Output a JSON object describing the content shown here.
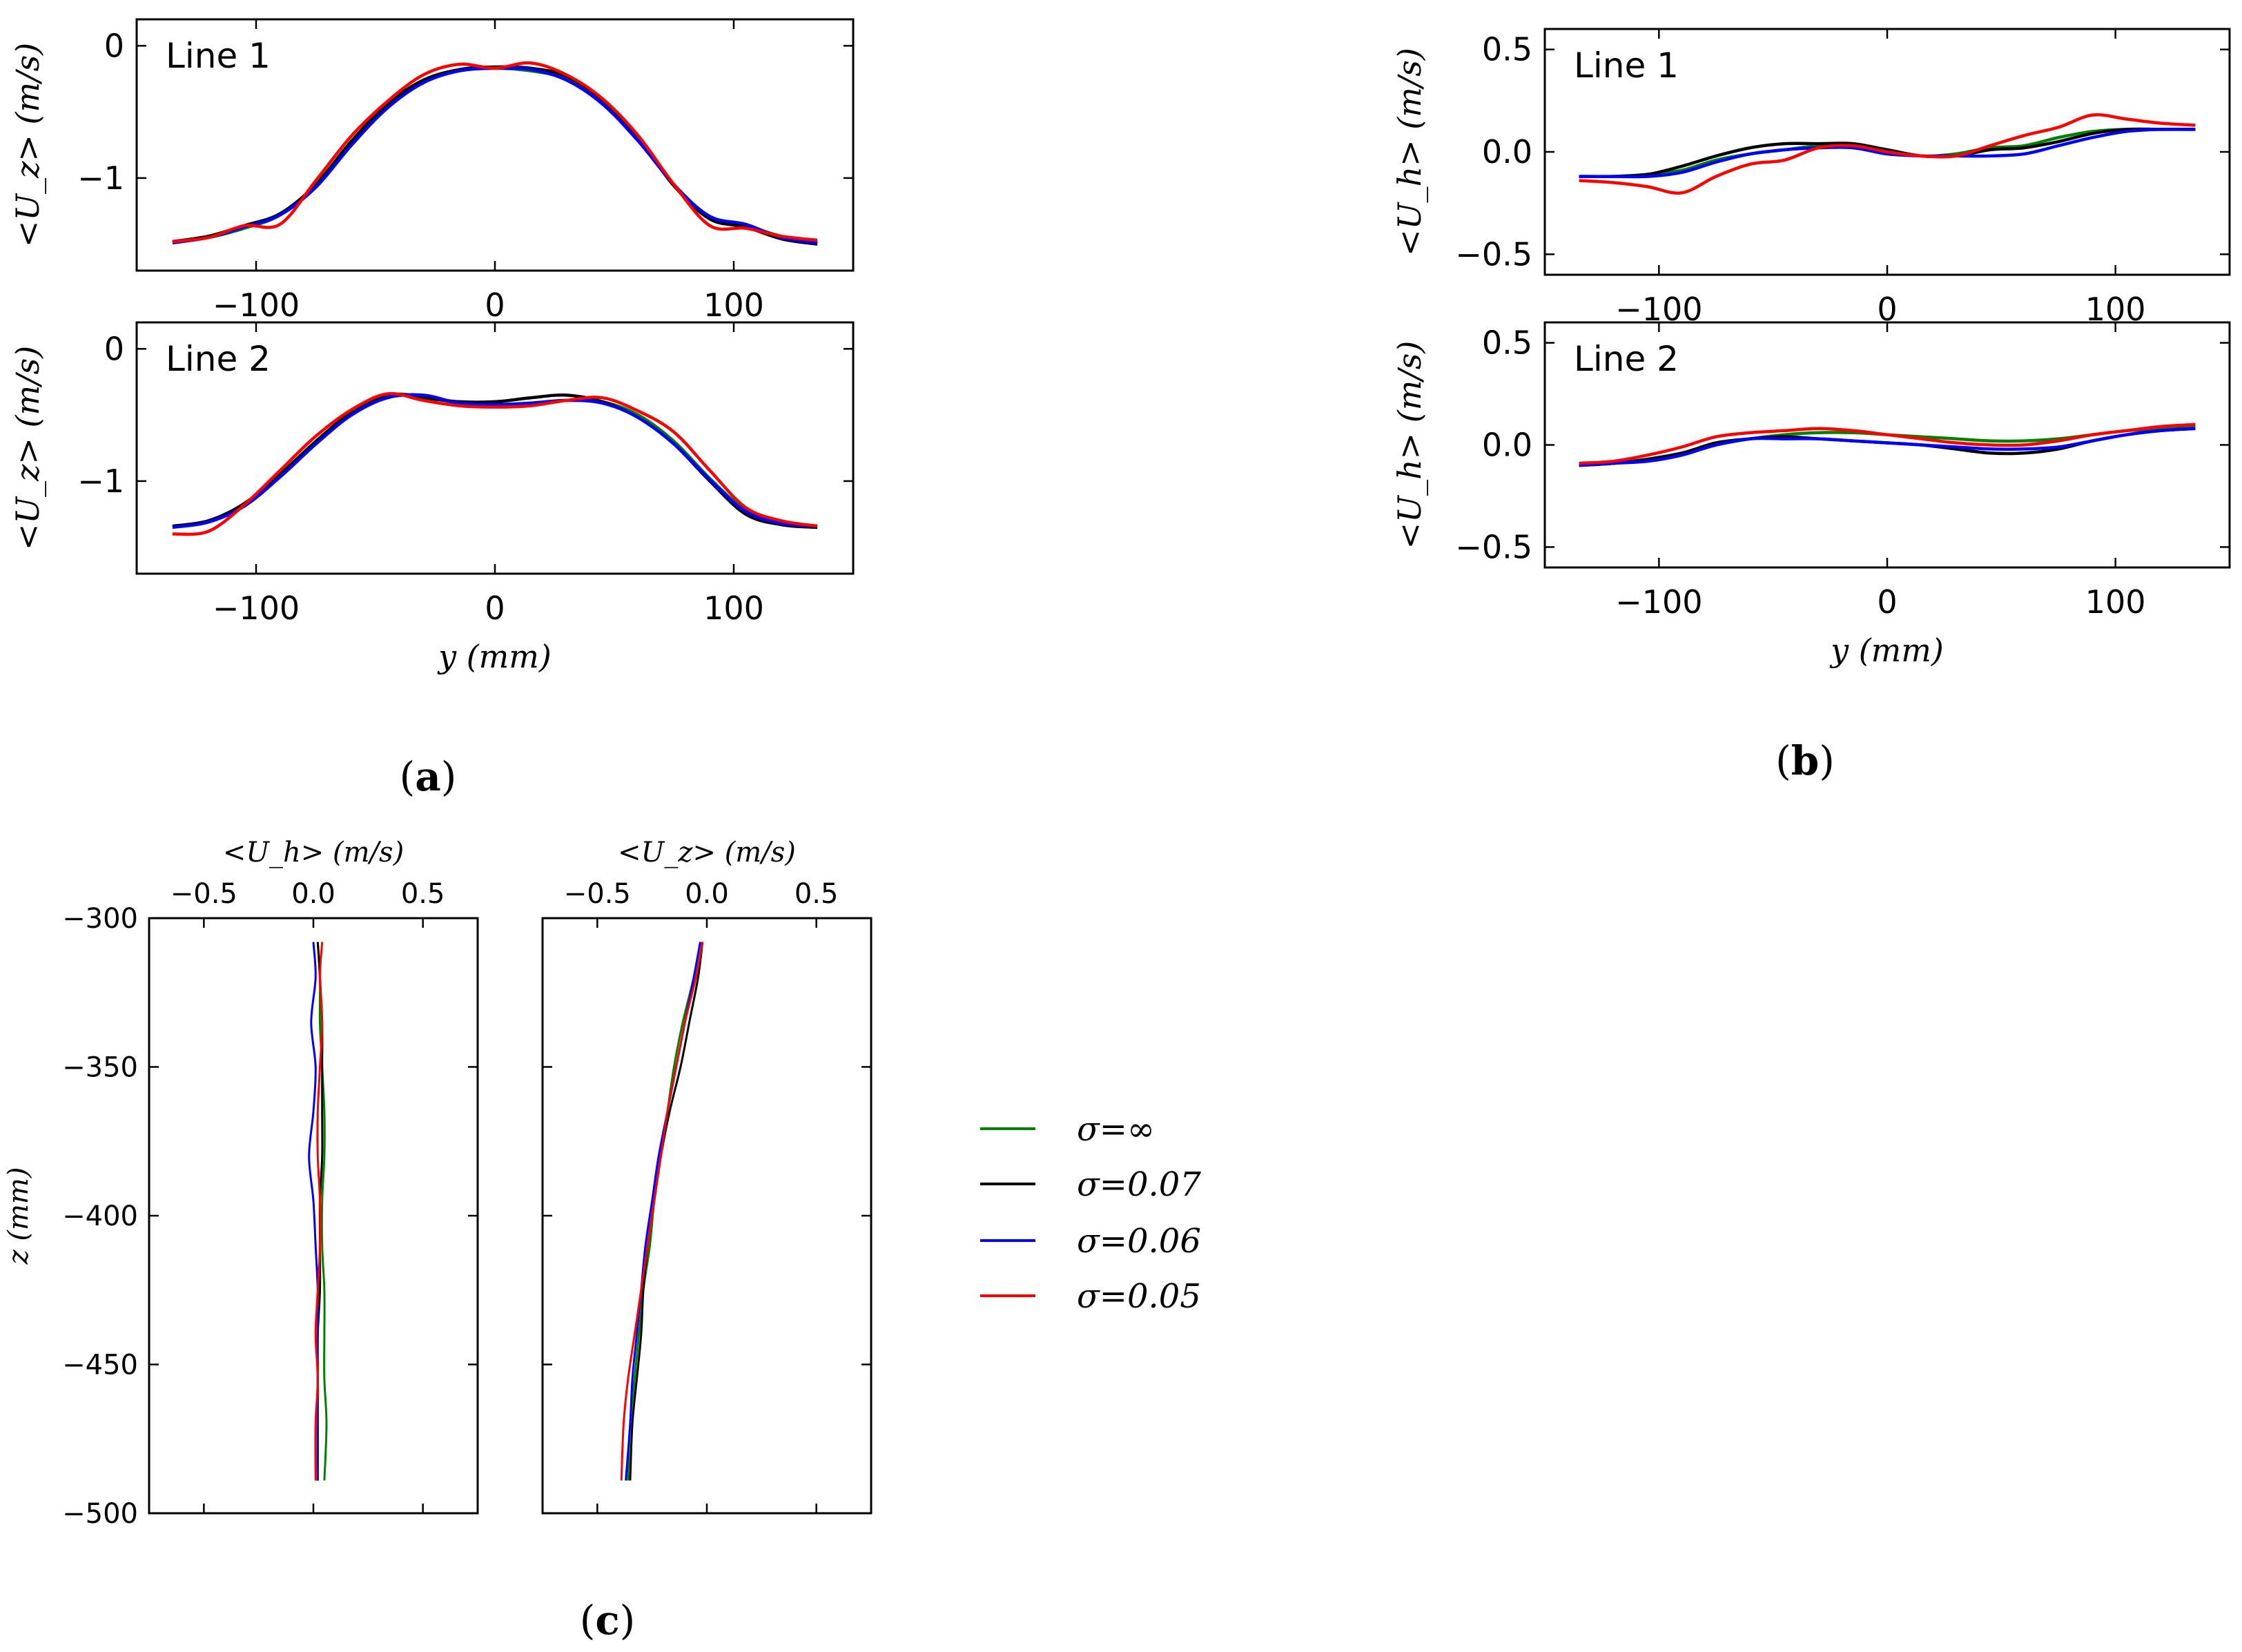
{
  "chart_data": [
    {
      "id": "a1",
      "type": "line",
      "panel": "a",
      "title": "Line 1",
      "xlabel": "",
      "ylabel": "<U_z> (m/s)",
      "xlim": [
        -150,
        150
      ],
      "ylim": [
        -1.7,
        0.2
      ],
      "xticks": [
        -100,
        0,
        100
      ],
      "yticks": [
        0,
        -1
      ],
      "x": [
        -135,
        -120,
        -105,
        -90,
        -75,
        -60,
        -45,
        -30,
        -15,
        0,
        15,
        30,
        45,
        60,
        75,
        90,
        105,
        120,
        135
      ],
      "series": [
        {
          "name": "σ=∞",
          "values": [
            -1.48,
            -1.45,
            -1.38,
            -1.28,
            -1.05,
            -0.72,
            -0.45,
            -0.27,
            -0.19,
            -0.17,
            -0.19,
            -0.25,
            -0.42,
            -0.7,
            -1.05,
            -1.3,
            -1.36,
            -1.44,
            -1.48
          ]
        },
        {
          "name": "σ=0.07",
          "values": [
            -1.48,
            -1.44,
            -1.36,
            -1.27,
            -1.05,
            -0.72,
            -0.44,
            -0.26,
            -0.18,
            -0.16,
            -0.17,
            -0.23,
            -0.41,
            -0.7,
            -1.06,
            -1.31,
            -1.37,
            -1.46,
            -1.5
          ]
        },
        {
          "name": "σ=0.06",
          "values": [
            -1.49,
            -1.45,
            -1.37,
            -1.28,
            -1.07,
            -0.75,
            -0.47,
            -0.28,
            -0.19,
            -0.17,
            -0.18,
            -0.26,
            -0.44,
            -0.72,
            -1.05,
            -1.29,
            -1.35,
            -1.45,
            -1.49
          ]
        },
        {
          "name": "σ=0.05",
          "values": [
            -1.48,
            -1.45,
            -1.36,
            -1.35,
            -1.02,
            -0.68,
            -0.42,
            -0.22,
            -0.14,
            -0.17,
            -0.13,
            -0.22,
            -0.4,
            -0.68,
            -1.05,
            -1.36,
            -1.38,
            -1.44,
            -1.47
          ]
        }
      ]
    },
    {
      "id": "a2",
      "type": "line",
      "panel": "a",
      "title": "Line 2",
      "xlabel": "y (mm)",
      "ylabel": "<U_z> (m/s)",
      "xlim": [
        -150,
        150
      ],
      "ylim": [
        -1.7,
        0.2
      ],
      "xticks": [
        -100,
        0,
        100
      ],
      "yticks": [
        0,
        -1
      ],
      "x": [
        -135,
        -120,
        -105,
        -90,
        -75,
        -60,
        -45,
        -30,
        -15,
        0,
        15,
        30,
        45,
        60,
        75,
        90,
        105,
        120,
        135
      ],
      "series": [
        {
          "name": "σ=∞",
          "values": [
            -1.35,
            -1.3,
            -1.18,
            -0.95,
            -0.7,
            -0.48,
            -0.35,
            -0.36,
            -0.41,
            -0.42,
            -0.41,
            -0.39,
            -0.4,
            -0.5,
            -0.7,
            -0.98,
            -1.22,
            -1.32,
            -1.35
          ]
        },
        {
          "name": "σ=0.07",
          "values": [
            -1.34,
            -1.3,
            -1.17,
            -0.95,
            -0.7,
            -0.48,
            -0.35,
            -0.37,
            -0.4,
            -0.4,
            -0.37,
            -0.35,
            -0.4,
            -0.52,
            -0.72,
            -1.0,
            -1.25,
            -1.33,
            -1.35
          ]
        },
        {
          "name": "σ=0.06",
          "values": [
            -1.35,
            -1.31,
            -1.19,
            -0.97,
            -0.72,
            -0.5,
            -0.37,
            -0.35,
            -0.41,
            -0.42,
            -0.41,
            -0.39,
            -0.41,
            -0.52,
            -0.72,
            -0.99,
            -1.23,
            -1.32,
            -1.34
          ]
        },
        {
          "name": "σ=0.05",
          "values": [
            -1.4,
            -1.38,
            -1.18,
            -0.92,
            -0.66,
            -0.46,
            -0.34,
            -0.39,
            -0.43,
            -0.44,
            -0.43,
            -0.39,
            -0.37,
            -0.47,
            -0.63,
            -0.92,
            -1.2,
            -1.3,
            -1.34
          ]
        }
      ]
    },
    {
      "id": "b1",
      "type": "line",
      "panel": "b",
      "title": "Line 1",
      "xlabel": "",
      "ylabel": "<U_h> (m/s)",
      "xlim": [
        -150,
        150
      ],
      "ylim": [
        -0.6,
        0.6
      ],
      "xticks": [
        -100,
        0,
        100
      ],
      "yticks": [
        0.5,
        0.0,
        -0.5
      ],
      "x": [
        -135,
        -120,
        -105,
        -90,
        -75,
        -60,
        -45,
        -30,
        -15,
        0,
        15,
        30,
        45,
        60,
        75,
        90,
        105,
        120,
        135
      ],
      "series": [
        {
          "name": "σ=∞",
          "values": [
            -0.12,
            -0.12,
            -0.11,
            -0.09,
            -0.04,
            -0.01,
            0.01,
            0.03,
            0.03,
            0.01,
            -0.02,
            -0.01,
            0.02,
            0.03,
            0.07,
            0.1,
            0.11,
            0.11,
            0.11
          ]
        },
        {
          "name": "σ=0.07",
          "values": [
            -0.12,
            -0.12,
            -0.11,
            -0.07,
            -0.02,
            0.02,
            0.04,
            0.04,
            0.04,
            0.01,
            -0.02,
            -0.02,
            0.01,
            0.02,
            0.05,
            0.09,
            0.11,
            0.11,
            0.11
          ]
        },
        {
          "name": "σ=0.06",
          "values": [
            -0.12,
            -0.12,
            -0.12,
            -0.1,
            -0.05,
            -0.01,
            0.01,
            0.02,
            0.02,
            -0.01,
            -0.02,
            -0.02,
            -0.02,
            -0.01,
            0.03,
            0.07,
            0.1,
            0.11,
            0.11
          ]
        },
        {
          "name": "σ=0.05",
          "values": [
            -0.14,
            -0.15,
            -0.17,
            -0.2,
            -0.12,
            -0.06,
            -0.04,
            0.02,
            0.03,
            0.0,
            -0.02,
            -0.02,
            0.03,
            0.08,
            0.12,
            0.18,
            0.16,
            0.14,
            0.13
          ]
        }
      ]
    },
    {
      "id": "b2",
      "type": "line",
      "panel": "b",
      "title": "Line 2",
      "xlabel": "y (mm)",
      "ylabel": "<U_h> (m/s)",
      "xlim": [
        -150,
        150
      ],
      "ylim": [
        -0.6,
        0.6
      ],
      "xticks": [
        -100,
        0,
        100
      ],
      "yticks": [
        0.5,
        0.0,
        -0.5
      ],
      "x": [
        -135,
        -120,
        -105,
        -90,
        -75,
        -60,
        -45,
        -30,
        -15,
        0,
        15,
        30,
        45,
        60,
        75,
        90,
        105,
        120,
        135
      ],
      "series": [
        {
          "name": "σ=∞",
          "values": [
            -0.1,
            -0.09,
            -0.07,
            -0.04,
            0.0,
            0.03,
            0.05,
            0.06,
            0.06,
            0.05,
            0.04,
            0.03,
            0.02,
            0.02,
            0.03,
            0.05,
            0.07,
            0.08,
            0.09
          ]
        },
        {
          "name": "σ=0.07",
          "values": [
            -0.1,
            -0.09,
            -0.07,
            -0.04,
            0.01,
            0.03,
            0.04,
            0.03,
            0.02,
            0.01,
            0.0,
            -0.02,
            -0.04,
            -0.04,
            -0.02,
            0.02,
            0.05,
            0.07,
            0.08
          ]
        },
        {
          "name": "σ=0.06",
          "values": [
            -0.1,
            -0.09,
            -0.08,
            -0.05,
            0.0,
            0.03,
            0.03,
            0.03,
            0.02,
            0.01,
            0.0,
            -0.01,
            -0.02,
            -0.02,
            -0.01,
            0.02,
            0.05,
            0.07,
            0.08
          ]
        },
        {
          "name": "σ=0.05",
          "values": [
            -0.09,
            -0.08,
            -0.05,
            -0.01,
            0.04,
            0.06,
            0.07,
            0.08,
            0.07,
            0.05,
            0.03,
            0.01,
            0.0,
            0.0,
            0.02,
            0.05,
            0.07,
            0.09,
            0.1
          ]
        }
      ]
    },
    {
      "id": "c1",
      "type": "line",
      "panel": "c",
      "orientation": "vertical",
      "title": "",
      "xlabel": "<U_h> (m/s)",
      "ylabel": "z (mm)",
      "xlim": [
        -0.75,
        0.75
      ],
      "ylim": [
        -500,
        -300
      ],
      "xticks": [
        -0.5,
        0.0,
        0.5
      ],
      "yticks": [
        -300,
        -350,
        -400,
        -450,
        -500
      ],
      "z": [
        -308,
        -320,
        -335,
        -350,
        -365,
        -380,
        -395,
        -410,
        -425,
        -440,
        -455,
        -470,
        -489
      ],
      "series": [
        {
          "name": "σ=∞",
          "values": [
            0.02,
            0.03,
            0.03,
            0.04,
            0.05,
            0.05,
            0.04,
            0.04,
            0.05,
            0.05,
            0.05,
            0.06,
            0.05
          ]
        },
        {
          "name": "σ=0.07",
          "values": [
            0.02,
            0.03,
            0.04,
            0.04,
            0.04,
            0.04,
            0.03,
            0.03,
            0.03,
            0.02,
            0.02,
            0.02,
            0.02
          ]
        },
        {
          "name": "σ=0.06",
          "values": [
            0.0,
            0.01,
            -0.01,
            0.01,
            0.0,
            -0.02,
            0.0,
            0.01,
            0.02,
            0.02,
            0.02,
            0.02,
            0.02
          ]
        },
        {
          "name": "σ=0.05",
          "values": [
            0.04,
            0.03,
            0.04,
            0.03,
            0.02,
            0.02,
            0.03,
            0.03,
            0.02,
            0.01,
            0.02,
            0.01,
            0.01
          ]
        }
      ]
    },
    {
      "id": "c2",
      "type": "line",
      "panel": "c",
      "orientation": "vertical",
      "title": "",
      "xlabel": "<U_z> (m/s)",
      "ylabel": "",
      "xlim": [
        -0.75,
        0.75
      ],
      "ylim": [
        -500,
        -300
      ],
      "xticks": [
        -0.5,
        0.0,
        0.5
      ],
      "yticks": [
        -300,
        -350,
        -400,
        -450,
        -500
      ],
      "z": [
        -308,
        -320,
        -335,
        -350,
        -365,
        -380,
        -395,
        -410,
        -425,
        -440,
        -455,
        -470,
        -489
      ],
      "series": [
        {
          "name": "σ=∞",
          "values": [
            -0.03,
            -0.06,
            -0.11,
            -0.15,
            -0.18,
            -0.21,
            -0.24,
            -0.26,
            -0.29,
            -0.31,
            -0.33,
            -0.35,
            -0.36
          ]
        },
        {
          "name": "σ=0.07",
          "values": [
            -0.02,
            -0.04,
            -0.08,
            -0.12,
            -0.17,
            -0.21,
            -0.24,
            -0.27,
            -0.29,
            -0.3,
            -0.32,
            -0.34,
            -0.35
          ]
        },
        {
          "name": "σ=0.06",
          "values": [
            -0.03,
            -0.06,
            -0.1,
            -0.14,
            -0.18,
            -0.22,
            -0.25,
            -0.28,
            -0.3,
            -0.32,
            -0.34,
            -0.35,
            -0.37
          ]
        },
        {
          "name": "σ=0.05",
          "values": [
            -0.02,
            -0.05,
            -0.1,
            -0.14,
            -0.18,
            -0.21,
            -0.24,
            -0.27,
            -0.3,
            -0.33,
            -0.36,
            -0.38,
            -0.39
          ]
        }
      ]
    }
  ],
  "series_colors": {
    "σ=∞": "#008000",
    "σ=0.07": "#000000",
    "σ=0.06": "#0000ff",
    "σ=0.05": "#ff0000"
  },
  "legend": {
    "placement": "right of panel c",
    "entries": [
      {
        "label": "σ=∞",
        "color": "#008000"
      },
      {
        "label": "σ=0.07",
        "color": "#000000"
      },
      {
        "label": "σ=0.06",
        "color": "#0000ff"
      },
      {
        "label": "σ=0.05",
        "color": "#ff0000"
      }
    ]
  },
  "panel_labels": {
    "a": "a",
    "b": "b",
    "c": "c"
  }
}
